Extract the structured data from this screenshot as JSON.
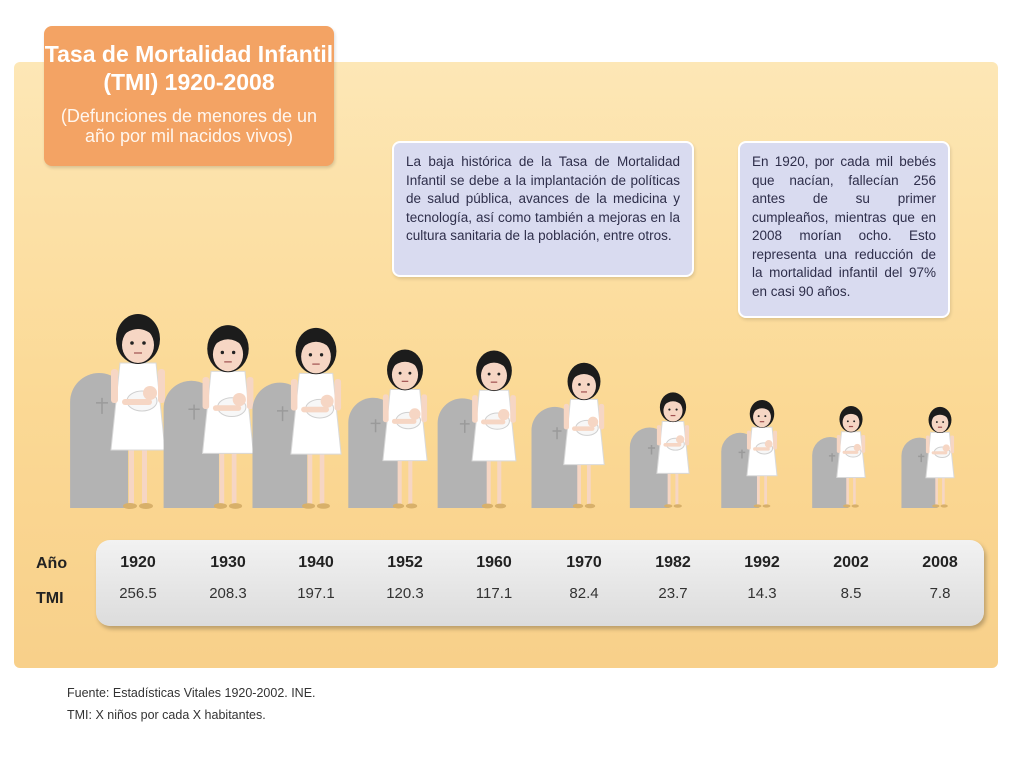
{
  "title": {
    "line1": "Tasa de Mortalidad Infantil",
    "line2": "(TMI) 1920-2008",
    "subtitle": "(Defunciones de menores de un año por mil nacidos vivos)"
  },
  "notes": {
    "left": "La baja histórica de la Tasa de Mortalidad Infantil se debe a la implantación de políticas de salud pública, avances de la medicina y tecnología, así como también a mejoras en la cultura sanitaria de la población, entre otros.",
    "right": "En 1920, por cada mil bebés que nacían, fallecían 256 antes de su primer cumpleaños, mientras que en 2008 morían ocho. Esto representa una reducción de la mortalidad infantil del 97% en casi 90 años."
  },
  "table_labels": {
    "year": "Año",
    "value": "TMI"
  },
  "chart_data": {
    "type": "table",
    "categories": [
      "1920",
      "1930",
      "1940",
      "1952",
      "1960",
      "1970",
      "1982",
      "1992",
      "2002",
      "2008"
    ],
    "values": [
      256.5,
      208.3,
      197.1,
      120.3,
      117.1,
      82.4,
      23.7,
      14.3,
      8.5,
      7.8
    ],
    "value_labels": [
      "256.5",
      "208.3",
      "197.1",
      "120.3",
      "117.1",
      "82.4",
      "23.7",
      "14.3",
      "8.5",
      "7.8"
    ]
  },
  "footer": {
    "source": "Fuente: Estadísticas Vitales 1920-2002. INE.",
    "definition": "TMI: X niños por cada X habitantes."
  },
  "colors": {
    "title_box": "#f3a364",
    "panel": "#fbd995",
    "note_box": "#d9dbf0",
    "tombstone": "#b3b3b3",
    "dress": "#ffffff",
    "hair": "#1c1c1c",
    "skin": "#f6d6c4"
  }
}
